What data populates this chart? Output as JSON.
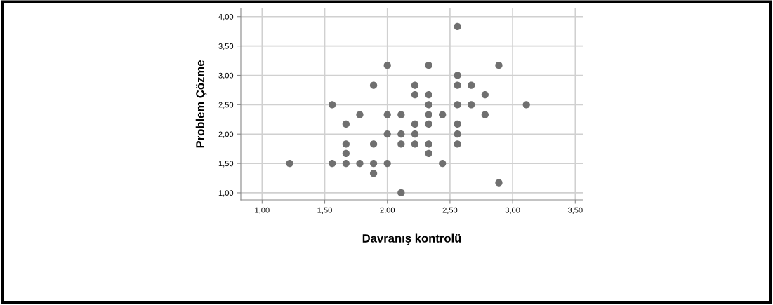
{
  "chart_data": {
    "type": "scatter",
    "xlabel": "Davranış kontrolü",
    "ylabel": "Problem Çözme",
    "color": "#707070",
    "marker": "circle",
    "grid": true,
    "x": [
      1.22,
      1.56,
      1.56,
      1.67,
      1.67,
      1.67,
      1.67,
      1.78,
      1.78,
      1.89,
      1.89,
      1.89,
      1.89,
      2.0,
      2.0,
      2.0,
      2.0,
      2.11,
      2.11,
      2.11,
      2.11,
      2.22,
      2.22,
      2.22,
      2.22,
      2.22,
      2.33,
      2.33,
      2.33,
      2.33,
      2.33,
      2.33,
      2.33,
      2.44,
      2.44,
      2.56,
      2.56,
      2.56,
      2.56,
      2.56,
      2.56,
      2.56,
      2.67,
      2.67,
      2.78,
      2.78,
      2.89,
      2.89,
      3.11
    ],
    "values": [
      1.5,
      2.5,
      1.5,
      2.17,
      1.83,
      1.67,
      1.5,
      2.33,
      1.5,
      2.83,
      1.83,
      1.5,
      1.33,
      3.17,
      2.33,
      2.0,
      1.5,
      2.33,
      2.0,
      1.83,
      1.0,
      2.83,
      2.67,
      2.17,
      2.0,
      1.83,
      3.17,
      2.67,
      2.5,
      2.33,
      2.17,
      1.83,
      1.67,
      2.33,
      1.5,
      3.83,
      3.0,
      2.83,
      2.5,
      2.17,
      2.0,
      1.83,
      2.83,
      2.5,
      2.67,
      2.33,
      3.17,
      1.17,
      2.5
    ],
    "xlim": [
      0.83,
      3.56
    ],
    "ylim": [
      0.88,
      4.14
    ],
    "xticks": [
      {
        "value": 1,
        "label": "1,00"
      },
      {
        "value": 1.5,
        "label": "1,50"
      },
      {
        "value": 2,
        "label": "2,00"
      },
      {
        "value": 2.5,
        "label": "2,50"
      },
      {
        "value": 3,
        "label": "3,00"
      },
      {
        "value": 3.5,
        "label": "3,50"
      }
    ],
    "yticks": [
      {
        "value": 1,
        "label": "1,00"
      },
      {
        "value": 1.5,
        "label": "1,50"
      },
      {
        "value": 2,
        "label": "2,00"
      },
      {
        "value": 2.5,
        "label": "2,50"
      },
      {
        "value": 3,
        "label": "3,00"
      },
      {
        "value": 3.5,
        "label": "3,50"
      },
      {
        "value": 4,
        "label": "4,00"
      }
    ]
  }
}
